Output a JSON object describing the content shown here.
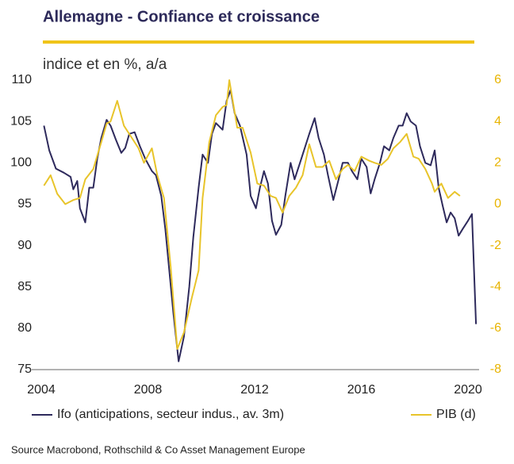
{
  "chart_data": {
    "type": "line",
    "title": "Allemagne  - Confiance et croissance",
    "subtitle": "indice et en %, a/a",
    "source": "Source Macrobond, Rothschild & Co Asset Management  Europe",
    "xlim": [
      2004,
      2020
    ],
    "xticks": [
      2004,
      2008,
      2012,
      2016,
      2020
    ],
    "ylim": [
      75,
      110
    ],
    "yticks": [
      75,
      80,
      85,
      90,
      95,
      100,
      105,
      110
    ],
    "y2lim": [
      -8,
      6
    ],
    "y2ticks": [
      -8,
      -6,
      -4,
      -2,
      0,
      2,
      4,
      6
    ],
    "series": [
      {
        "name": "Ifo (anticipations, secteur indus., av. 3m)",
        "color": "#2e2a5c",
        "axis": "y",
        "x": [
          2004.1,
          2004.3,
          2004.55,
          2004.85,
          2005.1,
          2005.2,
          2005.35,
          2005.45,
          2005.65,
          2005.8,
          2005.95,
          2006.1,
          2006.25,
          2006.45,
          2006.6,
          2006.8,
          2007.0,
          2007.15,
          2007.3,
          2007.5,
          2007.7,
          2007.9,
          2008.15,
          2008.3,
          2008.5,
          2008.65,
          2008.8,
          2008.95,
          2009.15,
          2009.35,
          2009.55,
          2009.7,
          2009.9,
          2010.05,
          2010.25,
          2010.4,
          2010.55,
          2010.8,
          2010.95,
          2011.1,
          2011.25,
          2011.45,
          2011.7,
          2011.85,
          2012.05,
          2012.2,
          2012.35,
          2012.5,
          2012.65,
          2012.8,
          2013.0,
          2013.15,
          2013.35,
          2013.5,
          2013.7,
          2013.9,
          2014.05,
          2014.25,
          2014.4,
          2014.6,
          2014.75,
          2014.95,
          2015.15,
          2015.3,
          2015.5,
          2015.65,
          2015.85,
          2016.0,
          2016.2,
          2016.35,
          2016.5,
          2016.7,
          2016.85,
          2017.05,
          2017.2,
          2017.4,
          2017.55,
          2017.7,
          2017.85,
          2018.05,
          2018.2,
          2018.4,
          2018.6,
          2018.75,
          2018.9,
          2019.05,
          2019.2,
          2019.35,
          2019.5,
          2019.65,
          2019.8,
          2020.0,
          2020.15,
          2020.3
        ],
        "values": [
          104.5,
          101.5,
          99.3,
          98.8,
          98.3,
          96.8,
          97.8,
          94.5,
          92.8,
          97,
          97,
          100.5,
          103,
          105.2,
          104.5,
          102.8,
          101.2,
          101.8,
          103.5,
          103.7,
          102,
          100.5,
          99,
          98.5,
          96,
          92,
          87,
          82,
          76,
          79,
          85,
          91,
          97,
          101,
          100,
          103.5,
          104.8,
          104,
          107.5,
          108.8,
          106,
          104.5,
          101,
          96,
          94.5,
          97,
          99,
          97.5,
          93,
          91.3,
          92.5,
          96,
          100,
          98,
          100,
          102,
          103.5,
          105.4,
          103,
          101,
          98.5,
          95.5,
          98,
          100,
          100,
          99,
          98,
          100.5,
          99.5,
          96.3,
          98,
          100,
          102,
          101.5,
          103,
          104.5,
          104.5,
          106,
          105,
          104.5,
          102,
          100,
          99.7,
          101.5,
          97,
          94.8,
          92.8,
          94,
          93.3,
          91.2,
          92,
          93,
          93.8,
          80.5
        ]
      },
      {
        "name": "PIB (d)",
        "color": "#e8c42a",
        "axis": "y2",
        "x": [
          2004.1,
          2004.35,
          2004.6,
          2004.9,
          2005.2,
          2005.45,
          2005.65,
          2005.95,
          2006.25,
          2006.45,
          2006.6,
          2006.85,
          2007.1,
          2007.4,
          2007.65,
          2007.85,
          2008.15,
          2008.35,
          2008.6,
          2008.85,
          2009.1,
          2009.35,
          2009.65,
          2009.9,
          2010.05,
          2010.3,
          2010.55,
          2010.8,
          2010.95,
          2011.05,
          2011.35,
          2011.55,
          2011.85,
          2012.1,
          2012.35,
          2012.6,
          2012.8,
          2013.05,
          2013.3,
          2013.55,
          2013.8,
          2014.05,
          2014.3,
          2014.55,
          2014.8,
          2015.05,
          2015.3,
          2015.5,
          2015.75,
          2016.0,
          2016.3,
          2016.5,
          2016.75,
          2017.0,
          2017.2,
          2017.45,
          2017.7,
          2017.95,
          2018.15,
          2018.4,
          2018.65,
          2018.75,
          2019.0,
          2019.25,
          2019.5,
          2019.7
        ],
        "values": [
          0.9,
          1.4,
          0.5,
          0.0,
          0.2,
          0.3,
          1.2,
          1.7,
          3.0,
          3.9,
          4.0,
          5.0,
          3.8,
          3.2,
          2.7,
          2.0,
          2.7,
          1.4,
          0.3,
          -3.0,
          -7.0,
          -6.2,
          -4.5,
          -3.2,
          0.3,
          3.0,
          4.3,
          4.7,
          4.8,
          6.0,
          3.7,
          3.7,
          2.5,
          1.0,
          0.9,
          0.4,
          0.3,
          -0.4,
          0.4,
          0.8,
          1.4,
          2.9,
          1.8,
          1.8,
          2.1,
          1.2,
          1.7,
          1.9,
          1.6,
          2.3,
          2.1,
          2.0,
          1.9,
          2.2,
          2.7,
          3.0,
          3.4,
          2.3,
          2.2,
          1.7,
          1.0,
          0.6,
          1.0,
          0.3,
          0.6,
          0.4
        ]
      }
    ]
  }
}
